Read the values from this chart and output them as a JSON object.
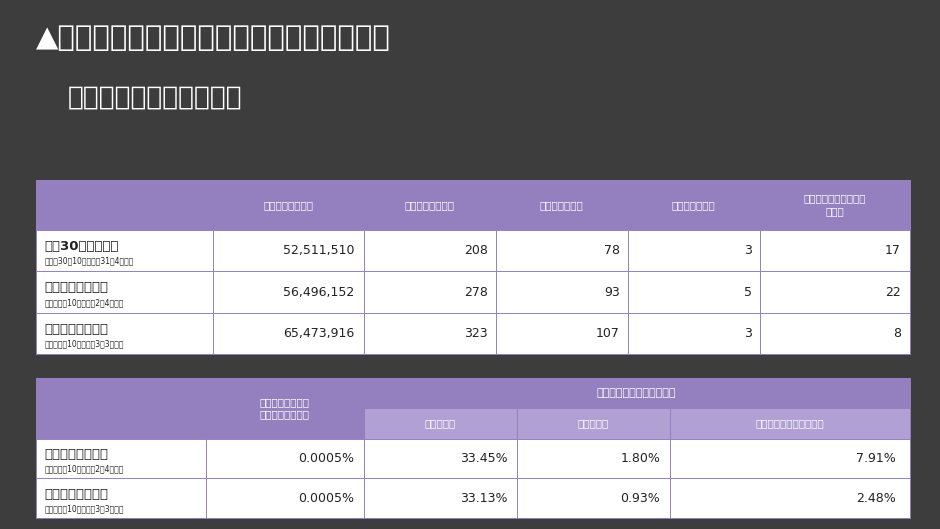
{
  "bg_color": "#3d3d3d",
  "title_line1": "▲インフルエンザワクチン副反応疑い報告数",
  "title_line2": "（医療機関からの報告）",
  "title_color": "#ffffff",
  "title_fontsize": 21,
  "subtitle_fontsize": 19,
  "table1_header": [
    "接種者数（回分）",
    "副反応疑い報告数",
    "うち重笶報告数",
    "うち死亡報告数",
    "うちアナフィラキシー\n報告数"
  ],
  "table1_rows": [
    [
      "平成30年シーズン",
      "（平成30年10月～平成31年4月末）",
      "52,511,510",
      "208",
      "78",
      "3",
      "17"
    ],
    [
      "令和元年シーズン",
      "（令和元年10月～令和2年4月末）",
      "56,496,152",
      "278",
      "93",
      "5",
      "22"
    ],
    [
      "令和２年シーズン",
      "（令和２年10月～令和3年3月末）",
      "65,473,916",
      "323",
      "107",
      "3",
      "8"
    ]
  ],
  "table2_rows": [
    [
      "令和元年シーズン",
      "（令和元年10月～令和2年4月末）",
      "0.0005%",
      "33.45%",
      "1.80%",
      "7.91%"
    ],
    [
      "令和２年シーズン",
      "（令和２年10月～令和3年3月末）",
      "0.0005%",
      "33.13%",
      "0.93%",
      "2.48%"
    ]
  ],
  "t2_h1_col1": "接種者数に対する",
  "t2_h1_col1b": "副反応疑い報告率",
  "t2_h1_span": "副反応疑い報告数に対する",
  "t2_h2_cols": [
    "重笶報告率",
    "死亡報告率",
    "アナフィラキシー報告率"
  ],
  "header_bg": "#9480be",
  "header_text": "#ffffff",
  "subheader_bg": "#b0a0d4",
  "row_bg": "#ffffff",
  "row_bg_alt": "#f8f8f8",
  "row_text": "#222222",
  "border_color": "#9480be"
}
